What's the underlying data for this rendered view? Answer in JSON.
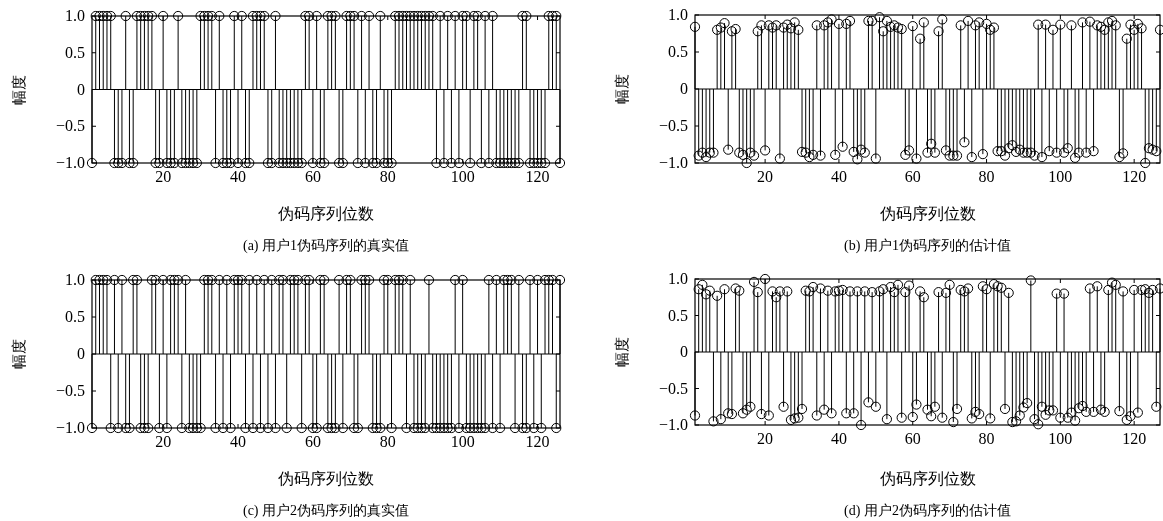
{
  "chart_data": [
    {
      "type": "lollipop",
      "title": "(a) 用户1伪码序列的真实值",
      "xlabel": "伪码序列位数",
      "ylabel": "幅度",
      "color": "#000000",
      "marker": "circle",
      "xlim": [
        1,
        126
      ],
      "ylim": [
        -1,
        1
      ],
      "xticks": [
        20,
        40,
        60,
        80,
        100,
        120
      ],
      "yticks": [
        {
          "value": -1,
          "label": "−1.0"
        },
        {
          "value": -0.5,
          "label": "−0.5"
        },
        {
          "value": 0,
          "label": "0"
        },
        {
          "value": 0.5,
          "label": "0.5"
        },
        {
          "value": 1,
          "label": "1.0"
        }
      ],
      "x": [
        1,
        2,
        3,
        4,
        5,
        6,
        7,
        8,
        9,
        10,
        11,
        12,
        13,
        14,
        15,
        16,
        17,
        18,
        19,
        20,
        21,
        22,
        23,
        24,
        25,
        26,
        27,
        28,
        29,
        30,
        31,
        32,
        33,
        34,
        35,
        36,
        37,
        38,
        39,
        40,
        41,
        42,
        43,
        44,
        45,
        46,
        47,
        48,
        49,
        50,
        51,
        52,
        53,
        54,
        55,
        56,
        57,
        58,
        59,
        60,
        61,
        62,
        63,
        64,
        65,
        66,
        67,
        68,
        69,
        70,
        71,
        72,
        73,
        74,
        75,
        76,
        77,
        78,
        79,
        80,
        81,
        82,
        83,
        84,
        85,
        86,
        87,
        88,
        89,
        90,
        91,
        92,
        93,
        94,
        95,
        96,
        97,
        98,
        99,
        100,
        101,
        102,
        103,
        104,
        105,
        106,
        107,
        108,
        109,
        110,
        111,
        112,
        113,
        114,
        115,
        116,
        117,
        118,
        119,
        120,
        121,
        122,
        123,
        124,
        125,
        126
      ],
      "values": [
        -1,
        1,
        1,
        1,
        1,
        1,
        -1,
        -1,
        -1,
        1,
        -1,
        -1,
        1,
        1,
        1,
        1,
        1,
        -1,
        -1,
        1,
        -1,
        -1,
        -1,
        1,
        -1,
        -1,
        -1,
        -1,
        -1,
        1,
        1,
        1,
        1,
        -1,
        1,
        -1,
        -1,
        -1,
        1,
        -1,
        1,
        -1,
        -1,
        1,
        1,
        1,
        1,
        -1,
        -1,
        1,
        -1,
        -1,
        -1,
        -1,
        -1,
        -1,
        -1,
        1,
        1,
        -1,
        1,
        -1,
        -1,
        1,
        1,
        1,
        -1,
        -1,
        1,
        1,
        1,
        -1,
        1,
        -1,
        1,
        -1,
        -1,
        1,
        -1,
        -1,
        -1,
        1,
        1,
        1,
        1,
        1,
        1,
        1,
        1,
        1,
        1,
        1,
        -1,
        1,
        -1,
        1,
        -1,
        1,
        -1,
        1,
        1,
        -1,
        1,
        1,
        -1,
        1,
        -1,
        1,
        -1,
        -1,
        -1,
        -1,
        -1,
        -1,
        -1,
        1,
        1,
        -1,
        -1,
        -1,
        -1,
        -1,
        1,
        1,
        1,
        -1
      ]
    },
    {
      "type": "lollipop",
      "title": "(b) 用户1伪码序列的估计值",
      "xlabel": "伪码序列位数",
      "ylabel": "幅度",
      "color": "#000000",
      "marker": "circle",
      "xlim": [
        1,
        127
      ],
      "ylim": [
        -1,
        1
      ],
      "xticks": [
        20,
        40,
        60,
        80,
        100,
        120
      ],
      "yticks": [
        {
          "value": -1,
          "label": "−1.0"
        },
        {
          "value": -0.5,
          "label": "−0.5"
        },
        {
          "value": 0,
          "label": "0"
        },
        {
          "value": 0.5,
          "label": "0.5"
        },
        {
          "value": 1,
          "label": "1.0"
        }
      ],
      "x": [
        1,
        2,
        3,
        4,
        5,
        6,
        7,
        8,
        9,
        10,
        11,
        12,
        13,
        14,
        15,
        16,
        17,
        18,
        19,
        20,
        21,
        22,
        23,
        24,
        25,
        26,
        27,
        28,
        29,
        30,
        31,
        32,
        33,
        34,
        35,
        36,
        37,
        38,
        39,
        40,
        41,
        42,
        43,
        44,
        45,
        46,
        47,
        48,
        49,
        50,
        51,
        52,
        53,
        54,
        55,
        56,
        57,
        58,
        59,
        60,
        61,
        62,
        63,
        64,
        65,
        66,
        67,
        68,
        69,
        70,
        71,
        72,
        73,
        74,
        75,
        76,
        77,
        78,
        79,
        80,
        81,
        82,
        83,
        84,
        85,
        86,
        87,
        88,
        89,
        90,
        91,
        92,
        93,
        94,
        95,
        96,
        97,
        98,
        99,
        100,
        101,
        102,
        103,
        104,
        105,
        106,
        107,
        108,
        109,
        110,
        111,
        112,
        113,
        114,
        115,
        116,
        117,
        118,
        119,
        120,
        121,
        122,
        123,
        124,
        125,
        126,
        127
      ],
      "values": [
        0.84,
        -0.9,
        -0.86,
        -0.92,
        -0.86,
        -0.86,
        0.8,
        0.83,
        0.89,
        -0.82,
        0.78,
        0.81,
        -0.86,
        -0.89,
        -1.0,
        -0.86,
        -0.9,
        0.78,
        0.86,
        -0.83,
        0.86,
        0.83,
        0.86,
        -0.94,
        0.83,
        0.87,
        0.82,
        0.9,
        0.8,
        -0.85,
        -0.86,
        -0.92,
        -0.89,
        0.86,
        -0.9,
        0.86,
        0.9,
        0.94,
        -0.89,
        0.88,
        -0.78,
        0.88,
        0.92,
        -0.85,
        -0.95,
        -0.82,
        -0.86,
        0.92,
        0.92,
        -0.94,
        0.97,
        0.78,
        0.92,
        0.84,
        0.86,
        0.83,
        0.81,
        -0.89,
        -0.83,
        0.85,
        -0.94,
        0.68,
        0.9,
        -0.86,
        -0.74,
        -0.86,
        0.78,
        0.94,
        -0.83,
        -0.9,
        -0.9,
        -0.9,
        0.86,
        -0.72,
        0.92,
        -0.92,
        0.86,
        0.9,
        -0.88,
        0.88,
        0.8,
        0.83,
        -0.84,
        -0.84,
        -0.9,
        -0.8,
        -0.76,
        -0.85,
        -0.82,
        -0.86,
        -0.86,
        -0.86,
        -0.9,
        0.87,
        -0.92,
        0.87,
        -0.84,
        0.8,
        -0.86,
        0.87,
        -0.86,
        -0.8,
        0.86,
        -0.93,
        -0.86,
        0.9,
        -0.86,
        0.91,
        -0.84,
        0.86,
        0.84,
        0.8,
        0.9,
        0.92,
        0.86,
        -0.92,
        -0.87,
        0.68,
        0.87,
        0.8,
        0.88,
        0.82,
        -1.0,
        -0.8,
        -0.82,
        -0.84,
        0.8
      ]
    },
    {
      "type": "lollipop",
      "title": "(c) 用户2伪码序列的真实值",
      "xlabel": "伪码序列位数",
      "ylabel": "幅度",
      "color": "#000000",
      "marker": "circle",
      "xlim": [
        1,
        126
      ],
      "ylim": [
        -1,
        1
      ],
      "xticks": [
        20,
        40,
        60,
        80,
        100,
        120
      ],
      "yticks": [
        {
          "value": -1,
          "label": "−1.0"
        },
        {
          "value": -0.5,
          "label": "−0.5"
        },
        {
          "value": 0,
          "label": "0"
        },
        {
          "value": 0.5,
          "label": "0.5"
        },
        {
          "value": 1,
          "label": "1.0"
        }
      ],
      "x": [
        1,
        2,
        3,
        4,
        5,
        6,
        7,
        8,
        9,
        10,
        11,
        12,
        13,
        14,
        15,
        16,
        17,
        18,
        19,
        20,
        21,
        22,
        23,
        24,
        25,
        26,
        27,
        28,
        29,
        30,
        31,
        32,
        33,
        34,
        35,
        36,
        37,
        38,
        39,
        40,
        41,
        42,
        43,
        44,
        45,
        46,
        47,
        48,
        49,
        50,
        51,
        52,
        53,
        54,
        55,
        56,
        57,
        58,
        59,
        60,
        61,
        62,
        63,
        64,
        65,
        66,
        67,
        68,
        69,
        70,
        71,
        72,
        73,
        74,
        75,
        76,
        77,
        78,
        79,
        80,
        81,
        82,
        83,
        84,
        85,
        86,
        87,
        88,
        89,
        90,
        91,
        92,
        93,
        94,
        95,
        96,
        97,
        98,
        99,
        100,
        101,
        102,
        103,
        104,
        105,
        106,
        107,
        108,
        109,
        110,
        111,
        112,
        113,
        114,
        115,
        116,
        117,
        118,
        119,
        120,
        121,
        122,
        123,
        124,
        125,
        126
      ],
      "values": [
        -1,
        1,
        1,
        1,
        1,
        -1,
        1,
        -1,
        1,
        -1,
        -1,
        1,
        1,
        -1,
        -1,
        -1,
        1,
        1,
        -1,
        1,
        -1,
        1,
        1,
        1,
        -1,
        1,
        -1,
        -1,
        -1,
        -1,
        1,
        1,
        1,
        -1,
        1,
        -1,
        1,
        -1,
        1,
        1,
        1,
        -1,
        1,
        -1,
        1,
        -1,
        1,
        -1,
        1,
        -1,
        1,
        1,
        -1,
        1,
        1,
        1,
        -1,
        1,
        1,
        -1,
        -1,
        1,
        1,
        -1,
        -1,
        -1,
        1,
        -1,
        1,
        1,
        -1,
        -1,
        1,
        1,
        1,
        -1,
        -1,
        -1,
        1,
        1,
        -1,
        1,
        1,
        1,
        -1,
        1,
        -1,
        -1,
        -1,
        -1,
        1,
        -1,
        -1,
        -1,
        -1,
        -1,
        -1,
        1,
        -1,
        1,
        -1,
        -1,
        -1,
        -1,
        -1,
        -1,
        1,
        -1,
        1,
        -1,
        1,
        1,
        1,
        -1,
        1,
        -1,
        -1,
        1,
        -1,
        1,
        -1,
        1,
        1,
        1,
        -1,
        1
      ]
    },
    {
      "type": "lollipop",
      "title": "(d) 用户2伪码序列的估计值",
      "xlabel": "伪码序列位数",
      "ylabel": "幅度",
      "color": "#000000",
      "marker": "circle",
      "xlim": [
        1,
        127
      ],
      "ylim": [
        -1,
        1
      ],
      "xticks": [
        20,
        40,
        60,
        80,
        100,
        120
      ],
      "yticks": [
        {
          "value": -1,
          "label": "−1.0"
        },
        {
          "value": -0.5,
          "label": "−0.5"
        },
        {
          "value": 0,
          "label": "0"
        },
        {
          "value": 0.5,
          "label": "0.5"
        },
        {
          "value": 1,
          "label": "1.0"
        }
      ],
      "x": [
        1,
        2,
        3,
        4,
        5,
        6,
        7,
        8,
        9,
        10,
        11,
        12,
        13,
        14,
        15,
        16,
        17,
        18,
        19,
        20,
        21,
        22,
        23,
        24,
        25,
        26,
        27,
        28,
        29,
        30,
        31,
        32,
        33,
        34,
        35,
        36,
        37,
        38,
        39,
        40,
        41,
        42,
        43,
        44,
        45,
        46,
        47,
        48,
        49,
        50,
        51,
        52,
        53,
        54,
        55,
        56,
        57,
        58,
        59,
        60,
        61,
        62,
        63,
        64,
        65,
        66,
        67,
        68,
        69,
        70,
        71,
        72,
        73,
        74,
        75,
        76,
        77,
        78,
        79,
        80,
        81,
        82,
        83,
        84,
        85,
        86,
        87,
        88,
        89,
        90,
        91,
        92,
        93,
        94,
        95,
        96,
        97,
        98,
        99,
        100,
        101,
        102,
        103,
        104,
        105,
        106,
        107,
        108,
        109,
        110,
        111,
        112,
        113,
        114,
        115,
        116,
        117,
        118,
        119,
        120,
        121,
        122,
        123,
        124,
        125,
        126,
        127
      ],
      "values": [
        -0.87,
        0.86,
        0.92,
        0.79,
        0.84,
        -0.95,
        0.77,
        -0.92,
        0.86,
        -0.84,
        -0.85,
        0.87,
        0.84,
        -0.84,
        -0.79,
        -0.75,
        0.96,
        0.82,
        -0.85,
        1.0,
        -0.87,
        0.83,
        0.75,
        0.83,
        -0.75,
        0.83,
        -0.93,
        -0.91,
        -0.9,
        -0.78,
        0.84,
        0.83,
        0.89,
        -0.87,
        0.87,
        -0.79,
        0.84,
        -0.84,
        0.83,
        0.84,
        0.85,
        -0.84,
        0.83,
        -0.84,
        0.83,
        -1.0,
        0.83,
        -0.69,
        0.82,
        -0.75,
        0.83,
        0.86,
        -0.92,
        0.89,
        0.82,
        0.92,
        -0.9,
        0.82,
        0.91,
        -0.89,
        -0.72,
        0.83,
        0.75,
        -0.79,
        -0.88,
        -0.75,
        0.82,
        -0.9,
        0.81,
        0.92,
        -0.96,
        -0.78,
        0.85,
        0.83,
        0.87,
        -0.91,
        -0.82,
        -0.85,
        0.9,
        0.86,
        -0.91,
        0.93,
        0.9,
        0.88,
        -0.78,
        0.81,
        -0.96,
        -0.95,
        -0.87,
        -0.76,
        -0.7,
        0.98,
        -0.92,
        -0.99,
        -0.75,
        -0.86,
        -0.8,
        -0.8,
        0.8,
        -0.9,
        0.8,
        -0.9,
        -0.83,
        -0.94,
        -0.77,
        -0.74,
        -0.82,
        0.87,
        -0.82,
        0.9,
        -0.79,
        -0.82,
        0.85,
        0.95,
        0.92,
        -0.81,
        0.83,
        -0.93,
        -0.88,
        0.85,
        -0.83,
        0.85,
        0.86,
        0.81,
        0.85,
        -0.75,
        0.87
      ]
    }
  ]
}
